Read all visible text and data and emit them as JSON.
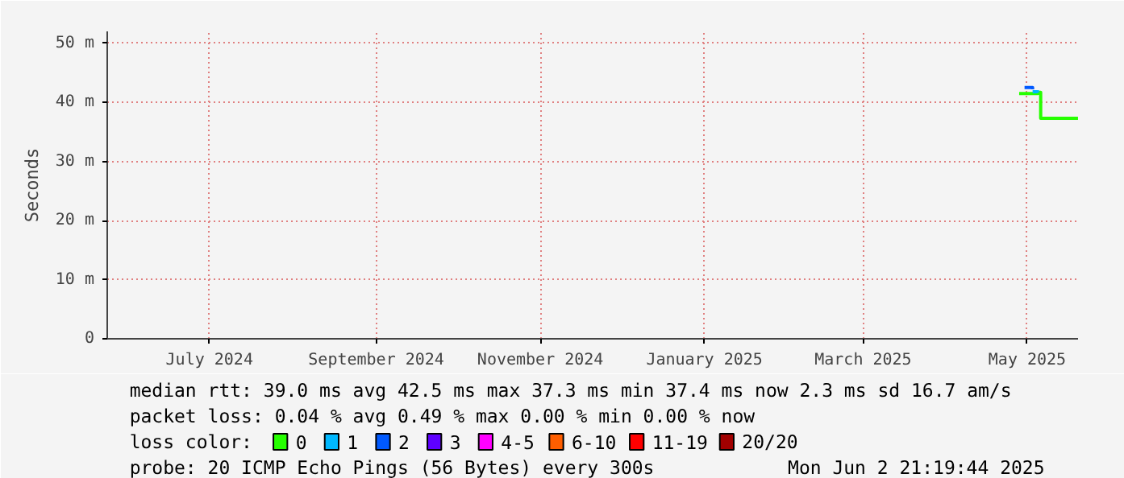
{
  "chart_data": {
    "type": "step",
    "ylabel": "Seconds",
    "xlim": [
      "2024-06-07",
      "2025-06-02T21:19"
    ],
    "xticks": [
      {
        "value": "2024-07-15",
        "label": "July 2024"
      },
      {
        "value": "2024-09-15",
        "label": "September 2024"
      },
      {
        "value": "2024-11-15",
        "label": "November 2024"
      },
      {
        "value": "2025-01-15",
        "label": "January 2025"
      },
      {
        "value": "2025-03-15",
        "label": "March 2025"
      },
      {
        "value": "2025-05-15",
        "label": "May 2025"
      }
    ],
    "ylim": [
      0,
      52
    ],
    "yticks": [
      0,
      {
        "value": 10,
        "label": "10 m"
      },
      {
        "value": 20,
        "label": "20 m"
      },
      {
        "value": 30,
        "label": "30 m"
      },
      {
        "value": 40,
        "label": "40 m"
      },
      {
        "value": 50,
        "label": "50 m"
      }
    ],
    "grid": true,
    "legend": "bottom",
    "legend_title": "loss color:",
    "series": [
      {
        "name": "0",
        "color": "#26ff00",
        "x": [
          "2025-05-12",
          "2025-05-14",
          "2025-05-19",
          "2025-05-20",
          "2025-06-02T21:00"
        ],
        "values": [
          41.5,
          41.5,
          41.7,
          37.3,
          37.3
        ]
      },
      {
        "name": "1",
        "color": "#00b8ff",
        "x": [
          "2025-05-17",
          "2025-05-19"
        ],
        "values": [
          41.8,
          41.7
        ]
      },
      {
        "name": "2",
        "color": "#0059ff",
        "x": [
          "2025-05-14",
          "2025-05-17"
        ],
        "values": [
          42.5,
          42.2
        ]
      },
      {
        "name": "3",
        "color": "#5e00ff"
      },
      {
        "name": "4-5",
        "color": "#ff00ff"
      },
      {
        "name": "6-10",
        "color": "#ff5e00"
      },
      {
        "name": "11-19",
        "color": "#ff0000"
      },
      {
        "name": "20/20",
        "color": "#a10000"
      }
    ],
    "annotations": [
      "median rtt:  39.0 ms avg  42.5 ms max  37.3 ms min  37.4 ms now  2.3 ms sd  16.7   am/s",
      "packet loss: 0.04 % avg  0.49 % max  0.00 % min  0.00 % now",
      "probe:       20 ICMP Echo Pings (56 Bytes) every 300s",
      "Mon Jun  2 21:19:44 2025"
    ]
  }
}
